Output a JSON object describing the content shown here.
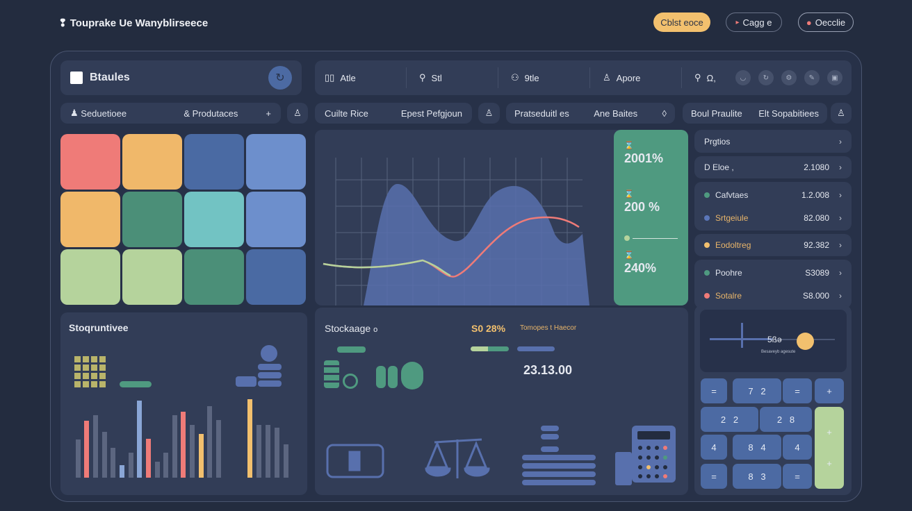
{
  "header": {
    "title": "Touprake Ue Wanyblirseece",
    "buttons": [
      {
        "label": "Cblst eoce",
        "icon": "none"
      },
      {
        "label": "Cagg e",
        "icon": "tag-icon"
      },
      {
        "label": "Oecclie",
        "icon": "user-icon"
      }
    ]
  },
  "brand": {
    "label": "Btaules",
    "icon": "table-icon",
    "action_icon": "refresh-icon"
  },
  "nav": {
    "items": [
      {
        "icon": "grid-icon",
        "label": "Atle"
      },
      {
        "icon": "pin-icon",
        "label": "Stl"
      },
      {
        "icon": "person-icon",
        "label": "9tle"
      },
      {
        "icon": "user-icon",
        "label": "Apore"
      },
      {
        "icon": "search-icon",
        "label": "Ω,"
      }
    ],
    "circle_icons": [
      "circle-icon",
      "refresh-icon",
      "settings-icon",
      "edit-icon",
      "box-icon"
    ]
  },
  "filters": [
    {
      "a": "Seduetioee",
      "b": "& Produtaces",
      "extra": "+"
    },
    {
      "a": "Cuilte Rice",
      "b": "Epest Pefgjoun"
    },
    {
      "a": "Pratseduitl es",
      "b": "Ane Baites",
      "extra": "◊"
    },
    {
      "a": "Boul Praulite",
      "b": "Elt Sopabitiees"
    }
  ],
  "colors": {
    "tiles": [
      "#ef7b78",
      "#f0b86a",
      "#4a6aa3",
      "#6d8fcc",
      "#f0b86a",
      "#4b8f78",
      "#72c3c3",
      "#6d8fcc",
      "#b5d39c",
      "#b5d39c",
      "#4b8f78",
      "#4a6aa3"
    ],
    "accent_green": "#4f9a80",
    "accent_yellow": "#f2c06e",
    "accent_blue": "#4c6aa3"
  },
  "stats": [
    {
      "icon": "hourglass-icon",
      "value": "2001%"
    },
    {
      "icon": "hourglass-icon",
      "value": "200 %"
    },
    {
      "icon": "hourglass-icon",
      "value": "240%"
    }
  ],
  "list": {
    "header": "Prgtios",
    "rows": [
      {
        "label": "D Eloe ,",
        "value": "2.1080",
        "dot": ""
      },
      {
        "label": "Cafvtaes",
        "value": "1.2.008",
        "dot": "#4f9a80"
      },
      {
        "label": "Srtgeiule",
        "value": "82.080",
        "dot": "#5b76b8"
      },
      {
        "label": "Eodoltreg",
        "value": "92.382",
        "dot": "#f2c06e"
      },
      {
        "label": "Poohre",
        "value": "S3089",
        "dot": "#4f9a80"
      },
      {
        "label": "Sotalre",
        "value": "S8.000",
        "dot": "#ef7b78"
      }
    ]
  },
  "left_panel": {
    "title": "Stoqruntivee",
    "bars": [
      [
        55,
        "#5c6680"
      ],
      [
        82,
        "#ef7b78"
      ],
      [
        90,
        "#5c6680"
      ],
      [
        66,
        "#5c6680"
      ],
      [
        43,
        "#5c6680"
      ],
      [
        18,
        "#8aa6d6"
      ],
      [
        36,
        "#5c6680"
      ],
      [
        111,
        "#8aa6d6"
      ],
      [
        56,
        "#ef7b78"
      ],
      [
        23,
        "#5c6680"
      ],
      [
        36,
        "#5c6680"
      ],
      [
        90,
        "#5c6680"
      ],
      [
        95,
        "#ef7b78"
      ],
      [
        76,
        "#5c6680"
      ],
      [
        63,
        "#f2c06e"
      ],
      [
        103,
        "#5c6680"
      ],
      [
        83,
        "#5c6680"
      ],
      [
        113,
        "#f2c06e"
      ],
      [
        76,
        "#5c6680"
      ],
      [
        76,
        "#5c6680"
      ],
      [
        72,
        "#5c6680"
      ],
      [
        48,
        "#5c6680"
      ]
    ]
  },
  "storage": {
    "title": "Stockaage",
    "title_icon": "circle-icon",
    "percent": "S0 28%",
    "sub": "Tomopes t Haecor",
    "amount": "23.13.00",
    "icons": [
      "database-icon",
      "clock-icon",
      "battery-icon",
      "mouse-icon",
      "shelf-icon",
      "scale-icon",
      "stack-icon",
      "calculator-icon"
    ]
  },
  "calculator": {
    "display": "5ßə",
    "display_sub": "Besaveyb agesute",
    "keys": [
      "=",
      "7   2",
      "=",
      "+",
      "2   2",
      "2   8",
      "+",
      "4",
      "8   4",
      "4",
      "=",
      "8   3",
      "="
    ],
    "slider_level": 0.78
  }
}
